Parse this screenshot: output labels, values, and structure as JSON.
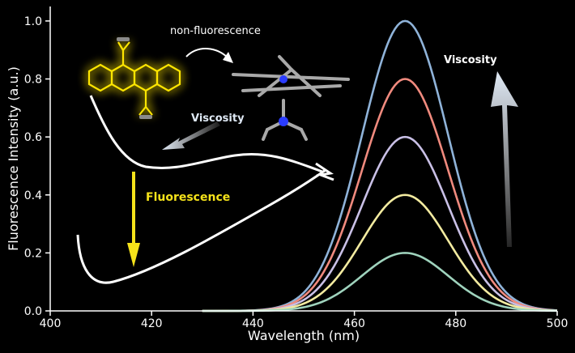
{
  "chart_data": {
    "type": "line",
    "xlabel": "Wavelength (nm)",
    "ylabel": "Fluorescence Intensity (a.u.)",
    "xlim": [
      400,
      500
    ],
    "ylim": [
      0,
      1.05
    ],
    "x_ticks": [
      400,
      420,
      440,
      460,
      480,
      500
    ],
    "y_ticks": [
      0.0,
      0.2,
      0.4,
      0.6,
      0.8,
      1.0
    ],
    "x_tick_labels": [
      "400",
      "420",
      "440",
      "460",
      "480",
      "500"
    ],
    "y_tick_labels": [
      "0.0",
      "0.2",
      "0.4",
      "0.6",
      "0.8",
      "1.0"
    ],
    "grid": false,
    "peak_wavelength": 470,
    "series": [
      {
        "peak": 1.0,
        "color": "#8fb3d9"
      },
      {
        "peak": 0.8,
        "color": "#f08a7e"
      },
      {
        "peak": 0.6,
        "color": "#c9c0e6"
      },
      {
        "peak": 0.4,
        "color": "#f3eba0"
      },
      {
        "peak": 0.2,
        "color": "#9fd3bd"
      }
    ],
    "annotations": {
      "non_fluorescence": "non-fluorescence",
      "viscosity_left": "Viscosity",
      "fluorescence": "Fluorescence",
      "viscosity_right": "Viscosity"
    },
    "colors": {
      "axis": "#ffffff",
      "fluorescence_text": "#f5e21a",
      "glow": "#ffe600",
      "arrow_light": "#dfe9f5"
    }
  }
}
